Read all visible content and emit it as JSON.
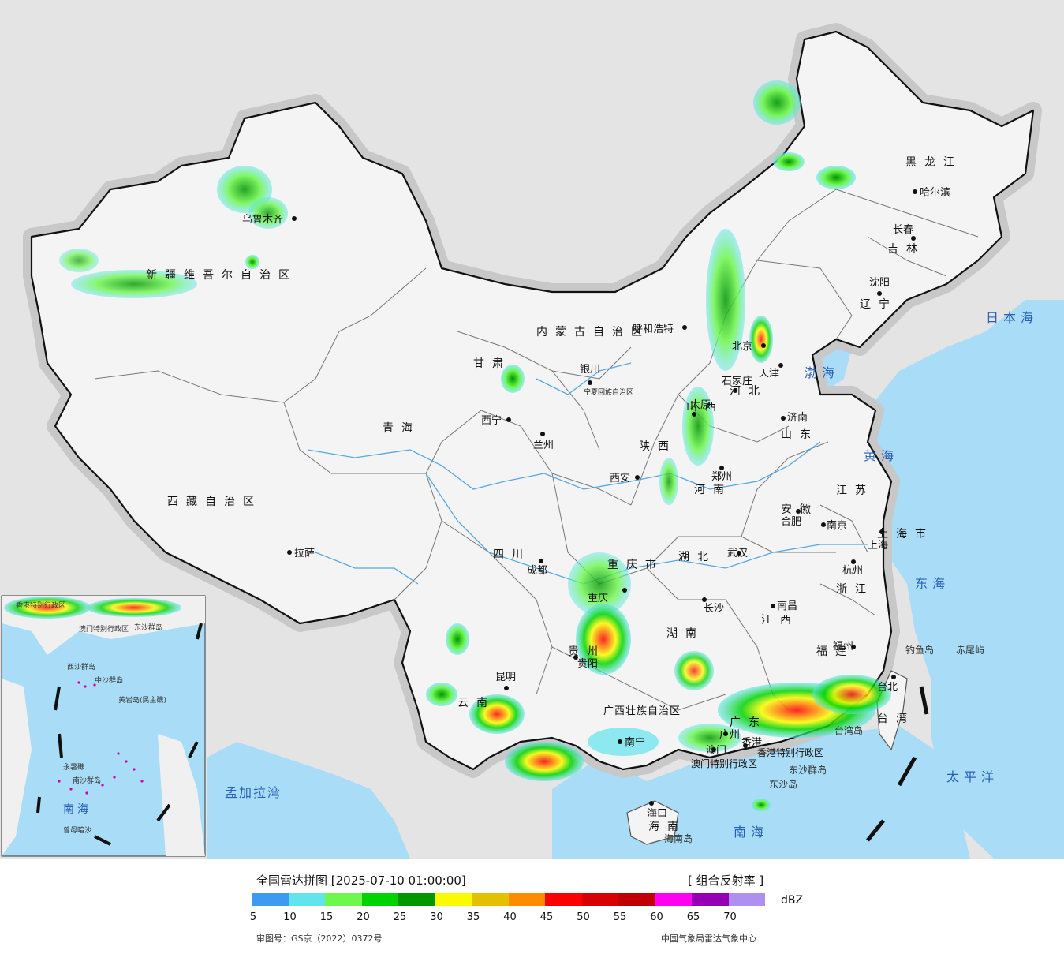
{
  "map": {
    "province_labels": [
      "黑龙江",
      "吉林",
      "辽宁",
      "内蒙古自治区",
      "河北",
      "山西",
      "山东",
      "河南",
      "陕西",
      "甘肃",
      "宁夏回族自治区",
      "青海",
      "新疆维吾尔自治区",
      "西藏自治区",
      "四川",
      "重庆市",
      "湖北",
      "安徽",
      "江苏",
      "上海市",
      "浙江",
      "江西",
      "湖南",
      "贵州",
      "云南",
      "广西壮族自治区",
      "广东",
      "福建",
      "台湾",
      "海南",
      "北京",
      "天津"
    ],
    "cities": [
      "哈尔滨",
      "长春",
      "沈阳",
      "呼和浩特",
      "北京",
      "天津",
      "石家庄",
      "太原",
      "济南",
      "郑州",
      "西安",
      "银川",
      "兰州",
      "西宁",
      "乌鲁木齐",
      "拉萨",
      "成都",
      "重庆",
      "武汉",
      "合肥",
      "南京",
      "上海",
      "杭州",
      "长沙",
      "南昌",
      "福州",
      "台北",
      "贵阳",
      "昆明",
      "南宁",
      "广州",
      "香港",
      "澳门",
      "海口"
    ],
    "seas": [
      "日本海",
      "渤海",
      "黄海",
      "东海",
      "太平洋",
      "南海",
      "孟加拉湾"
    ],
    "islands": [
      "钓鱼岛",
      "赤尾屿",
      "台湾岛",
      "东沙群岛",
      "东沙岛",
      "海南岛"
    ],
    "special_regions": [
      "香港特别行政区",
      "澳门特别行政区"
    ],
    "inset_labels": [
      "南海",
      "中沙群岛",
      "西沙群岛",
      "南沙群岛",
      "黄岩岛(民主礁)",
      "永暑礁",
      "曾母暗沙",
      "香港特别行政区",
      "澳门特别行政区",
      "东沙群岛"
    ]
  },
  "legend": {
    "title": "全国雷达拼图 [2025-07-10 01:00:00]",
    "product": "[ 组合反射率 ]",
    "unit": "dBZ",
    "colors": [
      "#3d9af3",
      "#61e4ec",
      "#6ef84d",
      "#00d400",
      "#009600",
      "#fbfb00",
      "#e3c000",
      "#fe8c00",
      "#ff0000",
      "#d80000",
      "#c00000",
      "#ff00f0",
      "#9600b4",
      "#ad90f0"
    ],
    "ticks": [
      "5",
      "10",
      "15",
      "20",
      "25",
      "30",
      "35",
      "40",
      "45",
      "50",
      "55",
      "60",
      "65",
      "70"
    ],
    "approval": "审图号：GS京（2022）0372号",
    "source": "中国气象局雷达气象中心"
  }
}
